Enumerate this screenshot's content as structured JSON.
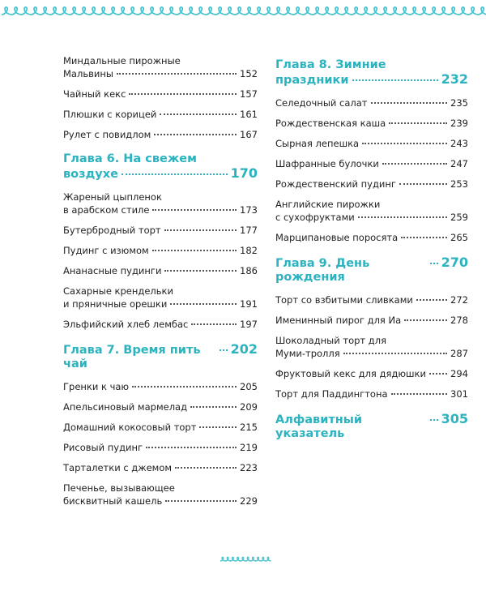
{
  "columns": [
    {
      "items": [
        {
          "lines": [
            "Миндальные  пирожные",
            "Мальвины"
          ],
          "page": 152
        },
        {
          "lines": [
            "Чайный кекс"
          ],
          "page": 157
        },
        {
          "lines": [
            "Плюшки с корицей"
          ],
          "page": 161
        },
        {
          "lines": [
            "Рулет с повидлом"
          ],
          "page": 167
        },
        {
          "heading": [
            "Глава 6. На свежем",
            "воздухе"
          ],
          "page": 170
        },
        {
          "lines": [
            "Жареный цыпленок",
            "в арабском стиле"
          ],
          "page": 173
        },
        {
          "lines": [
            "Бутербродный торт"
          ],
          "page": 177
        },
        {
          "lines": [
            "Пудинг с изюмом"
          ],
          "page": 182
        },
        {
          "lines": [
            "Ананасные пудинги"
          ],
          "page": 186
        },
        {
          "lines": [
            "Сахарные крендельки",
            "и пряничные орешки"
          ],
          "page": 191
        },
        {
          "lines": [
            "Эльфийский хлеб лембас"
          ],
          "page": 197
        },
        {
          "heading": [
            "Глава 7. Время пить чай"
          ],
          "page": 202
        },
        {
          "lines": [
            "Гренки к чаю"
          ],
          "page": 205
        },
        {
          "lines": [
            "Апельсиновый мармелад"
          ],
          "page": 209
        },
        {
          "lines": [
            "Домашний кокосовый торт"
          ],
          "page": 215
        },
        {
          "lines": [
            "Рисовый пудинг"
          ],
          "page": 219
        },
        {
          "lines": [
            "Тарталетки с джемом"
          ],
          "page": 223
        },
        {
          "lines": [
            "Печенье, вызывающее",
            "бисквитный кашель"
          ],
          "page": 229
        }
      ]
    },
    {
      "items": [
        {
          "heading": [
            "Глава 8. Зимние",
            "праздники"
          ],
          "page": 232
        },
        {
          "lines": [
            "Селедочный салат"
          ],
          "page": 235
        },
        {
          "lines": [
            "Рождественская каша"
          ],
          "page": 239
        },
        {
          "lines": [
            "Сырная лепешка"
          ],
          "page": 243
        },
        {
          "lines": [
            "Шафранные булочки"
          ],
          "page": 247
        },
        {
          "lines": [
            "Рождественский пудинг"
          ],
          "page": 253
        },
        {
          "lines": [
            "Английские пирожки",
            "с сухофруктами"
          ],
          "page": 259
        },
        {
          "lines": [
            "Марципановые поросята"
          ],
          "page": 265
        },
        {
          "heading": [
            "Глава 9. День рождения"
          ],
          "page": 270
        },
        {
          "lines": [
            "Торт со взбитыми сливками"
          ],
          "page": 272
        },
        {
          "lines": [
            "Именинный пирог для Иа"
          ],
          "page": 278
        },
        {
          "lines": [
            "Шоколадный торт для",
            "Муми-тролля"
          ],
          "page": 287
        },
        {
          "lines": [
            "Фруктовый кекс для дядюшки"
          ],
          "page": 294
        },
        {
          "lines": [
            "Торт для Паддингтона"
          ],
          "page": 301
        },
        {
          "heading": [
            "Алфавитный указатель"
          ],
          "page": 305
        }
      ]
    }
  ]
}
